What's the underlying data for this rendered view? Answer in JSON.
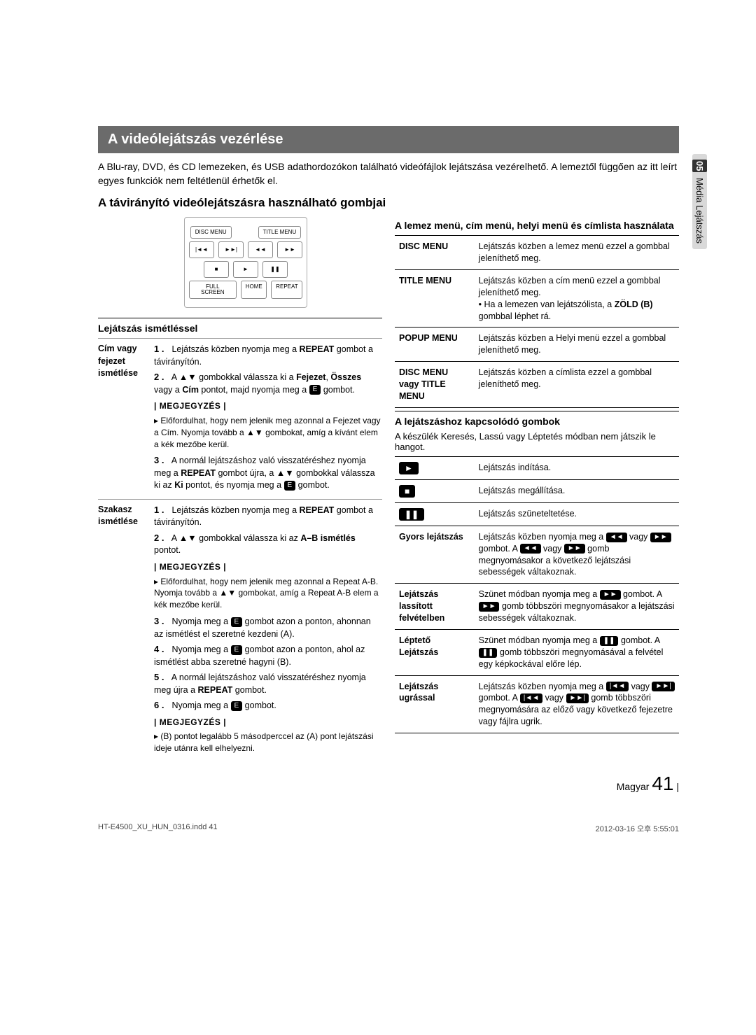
{
  "sideTab": {
    "num": "05",
    "label": "Média Lejátszás"
  },
  "h1": "A videólejátszás vezérlése",
  "intro": "A Blu-ray, DVD, és CD lemezeken, és USB adathordozókon található videófájlok lejátszása vezérelhető. A lemeztől függően az itt leírt egyes funkciók nem feltétlenül érhetők el.",
  "h2": "A távirányító videólejátszásra használható gombjai",
  "remote": {
    "row1": [
      "DISC MENU",
      "TITLE MENU"
    ],
    "row2": [
      "|◄◄",
      "►►|",
      "◄◄",
      "►►"
    ],
    "row3": [
      "■",
      "►",
      "❚❚"
    ],
    "row4": [
      "FULL SCREEN",
      "HOME",
      "REPEAT"
    ]
  },
  "leftHeading": "Lejátszás ismétléssel",
  "repeatTable": [
    {
      "head": "Cím vagy fejezet ismétlése",
      "steps": [
        "Lejátszás közben nyomja meg a <b>REPEAT</b> gombot a távirányítón.",
        "A ▲▼ gombokkal válassza ki a <b>Fejezet</b>, <b>Összes</b> vagy a <b>Cím</b> pontot, majd nyomja meg a <span class='iconbox'>E</span> gombot."
      ],
      "noteLabel": "| MEGJEGYZÉS |",
      "notes": [
        "Előfordulhat, hogy nem jelenik meg azonnal a Fejezet vagy a Cím. Nyomja tovább a ▲▼ gombokat, amíg a kívánt elem a kék mezőbe kerül."
      ],
      "steps2": [
        "A normál lejátszáshoz való visszatéréshez nyomja meg a <b>REPEAT</b> gombot újra, a ▲▼ gombokkal válassza ki az <b>Ki</b> pontot, és nyomja meg a <span class='iconbox'>E</span> gombot."
      ]
    },
    {
      "head": "Szakasz ismétlése",
      "steps": [
        "Lejátszás közben nyomja meg a <b>REPEAT</b> gombot a távirányítón.",
        "A ▲▼ gombokkal válassza ki az <b>A–B ismétlés</b> pontot."
      ],
      "noteLabel": "| MEGJEGYZÉS |",
      "notes": [
        "Előfordulhat, hogy nem jelenik meg azonnal a Repeat A-B. Nyomja tovább a ▲▼ gombokat, amíg a Repeat A-B elem a kék mezőbe kerül."
      ],
      "steps2": [
        "Nyomja meg a <span class='iconbox'>E</span> gombot azon a ponton, ahonnan az ismétlést el szeretné kezdeni (A).",
        "Nyomja meg a <span class='iconbox'>E</span> gombot azon a ponton, ahol az ismétlést abba szeretné hagyni (B).",
        "A normál lejátszáshoz való visszatéréshez nyomja meg újra a <b>REPEAT</b> gombot.",
        "Nyomja meg a <span class='iconbox'>E</span> gombot."
      ],
      "noteLabel2": "| MEGJEGYZÉS |",
      "notes2": [
        "(B) pontot legalább 5 másodperccel az (A) pont lejátszási ideje utánra kell elhelyezni."
      ]
    }
  ],
  "rightH3a": "A lemez menü, cím menü, helyi menü és címlista használata",
  "menuTable": [
    {
      "k": "DISC MENU",
      "v": "Lejátszás közben a lemez menü ezzel a gombbal jeleníthető meg."
    },
    {
      "k": "TITLE MENU",
      "v": "Lejátszás közben a cím menü ezzel a gombbal jeleníthető meg.<br>• Ha a lemezen van lejátszólista, a <b>ZÖLD (B)</b> gombbal léphet rá."
    },
    {
      "k": "POPUP MENU",
      "v": "Lejátszás közben a Helyi menü ezzel a gombbal jeleníthető meg."
    },
    {
      "k": "DISC MENU vagy TITLE MENU",
      "v": "Lejátszás közben a címlista ezzel a gombbal jeleníthető meg."
    }
  ],
  "rightH3b": "A lejátszáshoz kapcsolódó gombok",
  "rightP": "A készülék Keresés, Lassú vagy Léptetés módban nem játszik le hangot.",
  "ctrlTable": [
    {
      "icon": "►",
      "v": "Lejátszás indítása."
    },
    {
      "icon": "■",
      "v": "Lejátszás megállítása."
    },
    {
      "icon": "❚❚",
      "v": "Lejátszás szüneteltetése."
    },
    {
      "k": "Gyors lejátszás",
      "v": "Lejátszás közben nyomja meg a <span class='iconbox'>◄◄</span> vagy <span class='iconbox'>►►</span> gombot. A <span class='iconbox'>◄◄</span> vagy <span class='iconbox'>►►</span> gomb megnyomásakor a következő lejátszási sebességek váltakoznak."
    },
    {
      "k": "Lejátszás lassított felvételben",
      "v": "Szünet módban nyomja meg a <span class='iconbox'>►►</span> gombot. A <span class='iconbox'>►►</span> gomb többszöri megnyomásakor a lejátszási sebességek váltakoznak."
    },
    {
      "k": "Léptető Lejátszás",
      "v": "Szünet módban nyomja meg a <span class='iconbox'>❚❚</span> gombot. A <span class='iconbox'>❚❚</span> gomb többszöri megnyomásával a felvétel egy képkockával előre lép."
    },
    {
      "k": "Lejátszás ugrással",
      "v": "Lejátszás közben nyomja meg a <span class='iconbox'>|◄◄</span> vagy <span class='iconbox'>►►|</span> gombot. A <span class='iconbox'>|◄◄</span> vagy <span class='iconbox'>►►|</span> gomb többszöri megnyomására az előző vagy következő fejezetre vagy fájlra ugrik."
    }
  ],
  "pageLang": "Magyar",
  "pageNum": "41",
  "footerLeft": "HT-E4500_XU_HUN_0316.indd   41",
  "footerRight": "2012-03-16   오후 5:55:01"
}
